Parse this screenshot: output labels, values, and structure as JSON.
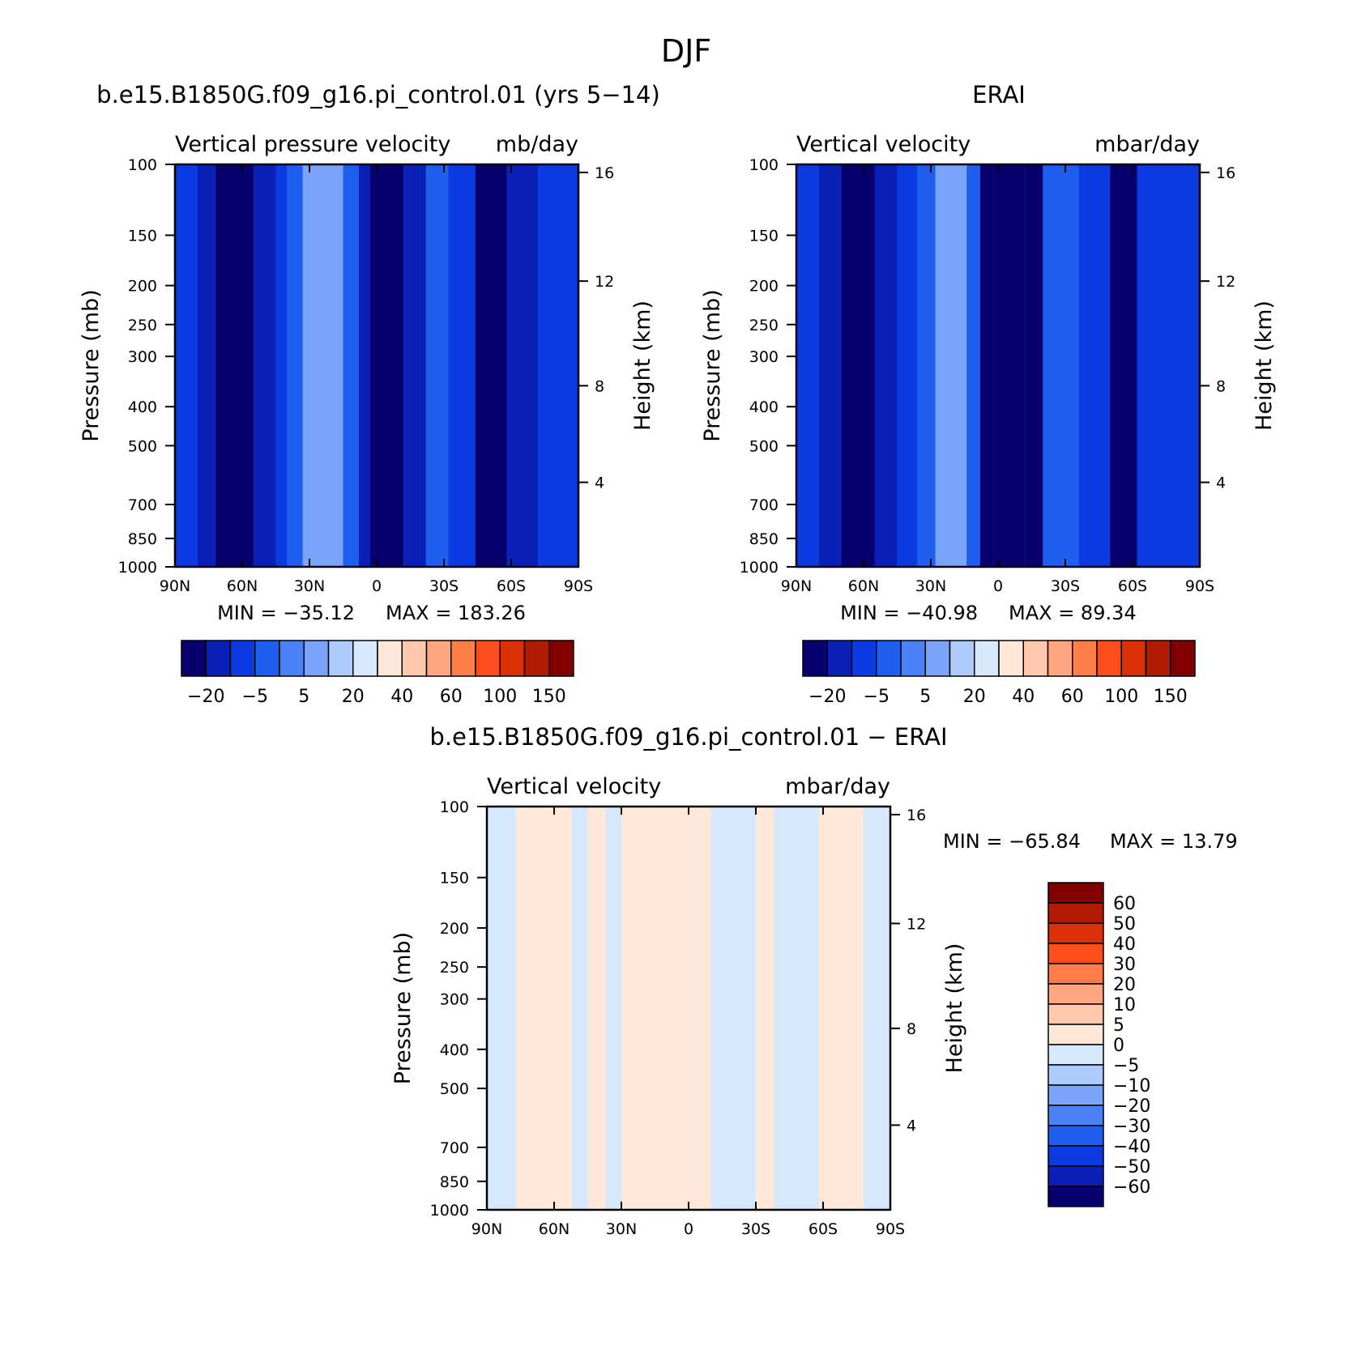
{
  "figure": {
    "title": "DJF"
  },
  "colors": {
    "full_scale": [
      "#08006f",
      "#0a20b7",
      "#0c3be2",
      "#1e5ff0",
      "#4b82f5",
      "#7aa4f9",
      "#aecafc",
      "#d6e8fd",
      "#ffe8d8",
      "#ffc8ad",
      "#ffa57f",
      "#ff7d48",
      "#fc4e1c",
      "#db2f05",
      "#b11b03",
      "#820000"
    ],
    "diff_scale": [
      "#08006f",
      "#0a20b7",
      "#0c3be2",
      "#1e5ff0",
      "#4b82f5",
      "#7aa4f9",
      "#aecafc",
      "#d6e8fd",
      "#ffe8d8",
      "#ffc8ad",
      "#ffa57f",
      "#ff7d48",
      "#fc4e1c",
      "#db2f05",
      "#b11b03",
      "#820000"
    ]
  },
  "chart_data": [
    {
      "type": "heatmap",
      "title": "b.e15.B1850G.f09_g16.pi_control.01 (yrs 5−14)",
      "left_label": "Vertical pressure velocity",
      "right_label": "mb/day",
      "ylabel": "Pressure (mb)",
      "y2label": "Height (km)",
      "x_ticks": [
        "90N",
        "60N",
        "30N",
        "0",
        "30S",
        "60S",
        "90S"
      ],
      "y_ticks": [
        "100",
        "150",
        "200",
        "250",
        "300",
        "400",
        "500",
        "700",
        "850",
        "1000"
      ],
      "y2_ticks": [
        "16",
        "12",
        "8",
        "4"
      ],
      "min_label": "MIN = −35.12",
      "max_label": "MAX = 183.26",
      "colorbar_labels": [
        "−20",
        "−5",
        "5",
        "20",
        "40",
        "60",
        "100",
        "150"
      ],
      "bands": [
        {
          "lat0": 90,
          "lat1": 80,
          "value": -10
        },
        {
          "lat0": 80,
          "lat1": 72,
          "value": -20
        },
        {
          "lat0": 72,
          "lat1": 55,
          "value": -30
        },
        {
          "lat0": 55,
          "lat1": 45,
          "value": -20
        },
        {
          "lat0": 45,
          "lat1": 40,
          "value": -10
        },
        {
          "lat0": 40,
          "lat1": 33,
          "value": -5
        },
        {
          "lat0": 33,
          "lat1": 15,
          "value": 5
        },
        {
          "lat0": 15,
          "lat1": 8,
          "value": -5
        },
        {
          "lat0": 8,
          "lat1": 3,
          "value": -20
        },
        {
          "lat0": 3,
          "lat1": -12,
          "value": -40
        },
        {
          "lat0": -12,
          "lat1": -22,
          "value": -20
        },
        {
          "lat0": -22,
          "lat1": -32,
          "value": -5
        },
        {
          "lat0": -32,
          "lat1": -44,
          "value": -10
        },
        {
          "lat0": -44,
          "lat1": -58,
          "value": -30
        },
        {
          "lat0": -58,
          "lat1": -72,
          "value": -20
        },
        {
          "lat0": -72,
          "lat1": -90,
          "value": -10
        }
      ]
    },
    {
      "type": "heatmap",
      "title": "ERAI",
      "left_label": "Vertical velocity",
      "right_label": "mbar/day",
      "ylabel": "Pressure (mb)",
      "y2label": "Height (km)",
      "x_ticks": [
        "90N",
        "60N",
        "30N",
        "0",
        "30S",
        "60S",
        "90S"
      ],
      "y_ticks": [
        "100",
        "150",
        "200",
        "250",
        "300",
        "400",
        "500",
        "700",
        "850",
        "1000"
      ],
      "y2_ticks": [
        "16",
        "12",
        "8",
        "4"
      ],
      "min_label": "MIN = −40.98",
      "max_label": "MAX = 89.34",
      "colorbar_labels": [
        "−20",
        "−5",
        "5",
        "20",
        "40",
        "60",
        "100",
        "150"
      ],
      "bands": [
        {
          "lat0": 90,
          "lat1": 80,
          "value": -10
        },
        {
          "lat0": 80,
          "lat1": 70,
          "value": -20
        },
        {
          "lat0": 70,
          "lat1": 55,
          "value": -30
        },
        {
          "lat0": 55,
          "lat1": 45,
          "value": -20
        },
        {
          "lat0": 45,
          "lat1": 36,
          "value": -10
        },
        {
          "lat0": 36,
          "lat1": 28,
          "value": -5
        },
        {
          "lat0": 28,
          "lat1": 14,
          "value": 5
        },
        {
          "lat0": 14,
          "lat1": 8,
          "value": -5
        },
        {
          "lat0": 8,
          "lat1": 2,
          "value": -30
        },
        {
          "lat0": 2,
          "lat1": -12,
          "value": -40
        },
        {
          "lat0": -12,
          "lat1": -20,
          "value": -30
        },
        {
          "lat0": -20,
          "lat1": -36,
          "value": -5
        },
        {
          "lat0": -36,
          "lat1": -50,
          "value": -10
        },
        {
          "lat0": -50,
          "lat1": -62,
          "value": -30
        },
        {
          "lat0": -62,
          "lat1": -90,
          "value": -10
        }
      ]
    },
    {
      "type": "heatmap",
      "title": "b.e15.B1850G.f09_g16.pi_control.01 − ERAI",
      "left_label": "Vertical velocity",
      "right_label": "mbar/day",
      "ylabel": "Pressure (mb)",
      "y2label": "Height (km)",
      "x_ticks": [
        "90N",
        "60N",
        "30N",
        "0",
        "30S",
        "60S",
        "90S"
      ],
      "y_ticks": [
        "100",
        "150",
        "200",
        "250",
        "300",
        "400",
        "500",
        "700",
        "850",
        "1000"
      ],
      "y2_ticks": [
        "16",
        "12",
        "8",
        "4"
      ],
      "min_label": "MIN = −65.84",
      "max_label": "MAX = 13.79",
      "colorbar_labels": [
        "60",
        "50",
        "40",
        "30",
        "20",
        "10",
        "5",
        "0",
        "−5",
        "−10",
        "−20",
        "−30",
        "−40",
        "−50",
        "−60"
      ],
      "bands": [
        {
          "lat0": 90,
          "lat1": 77,
          "value": -2
        },
        {
          "lat0": 77,
          "lat1": 52,
          "value": 2
        },
        {
          "lat0": 52,
          "lat1": 45,
          "value": -2
        },
        {
          "lat0": 45,
          "lat1": 37,
          "value": 2
        },
        {
          "lat0": 37,
          "lat1": 30,
          "value": -2
        },
        {
          "lat0": 30,
          "lat1": -10,
          "value": 2
        },
        {
          "lat0": -10,
          "lat1": -30,
          "value": -2
        },
        {
          "lat0": -30,
          "lat1": -38,
          "value": 2
        },
        {
          "lat0": -38,
          "lat1": -58,
          "value": -2
        },
        {
          "lat0": -58,
          "lat1": -78,
          "value": 2
        },
        {
          "lat0": -78,
          "lat1": -90,
          "value": -2
        }
      ]
    }
  ]
}
